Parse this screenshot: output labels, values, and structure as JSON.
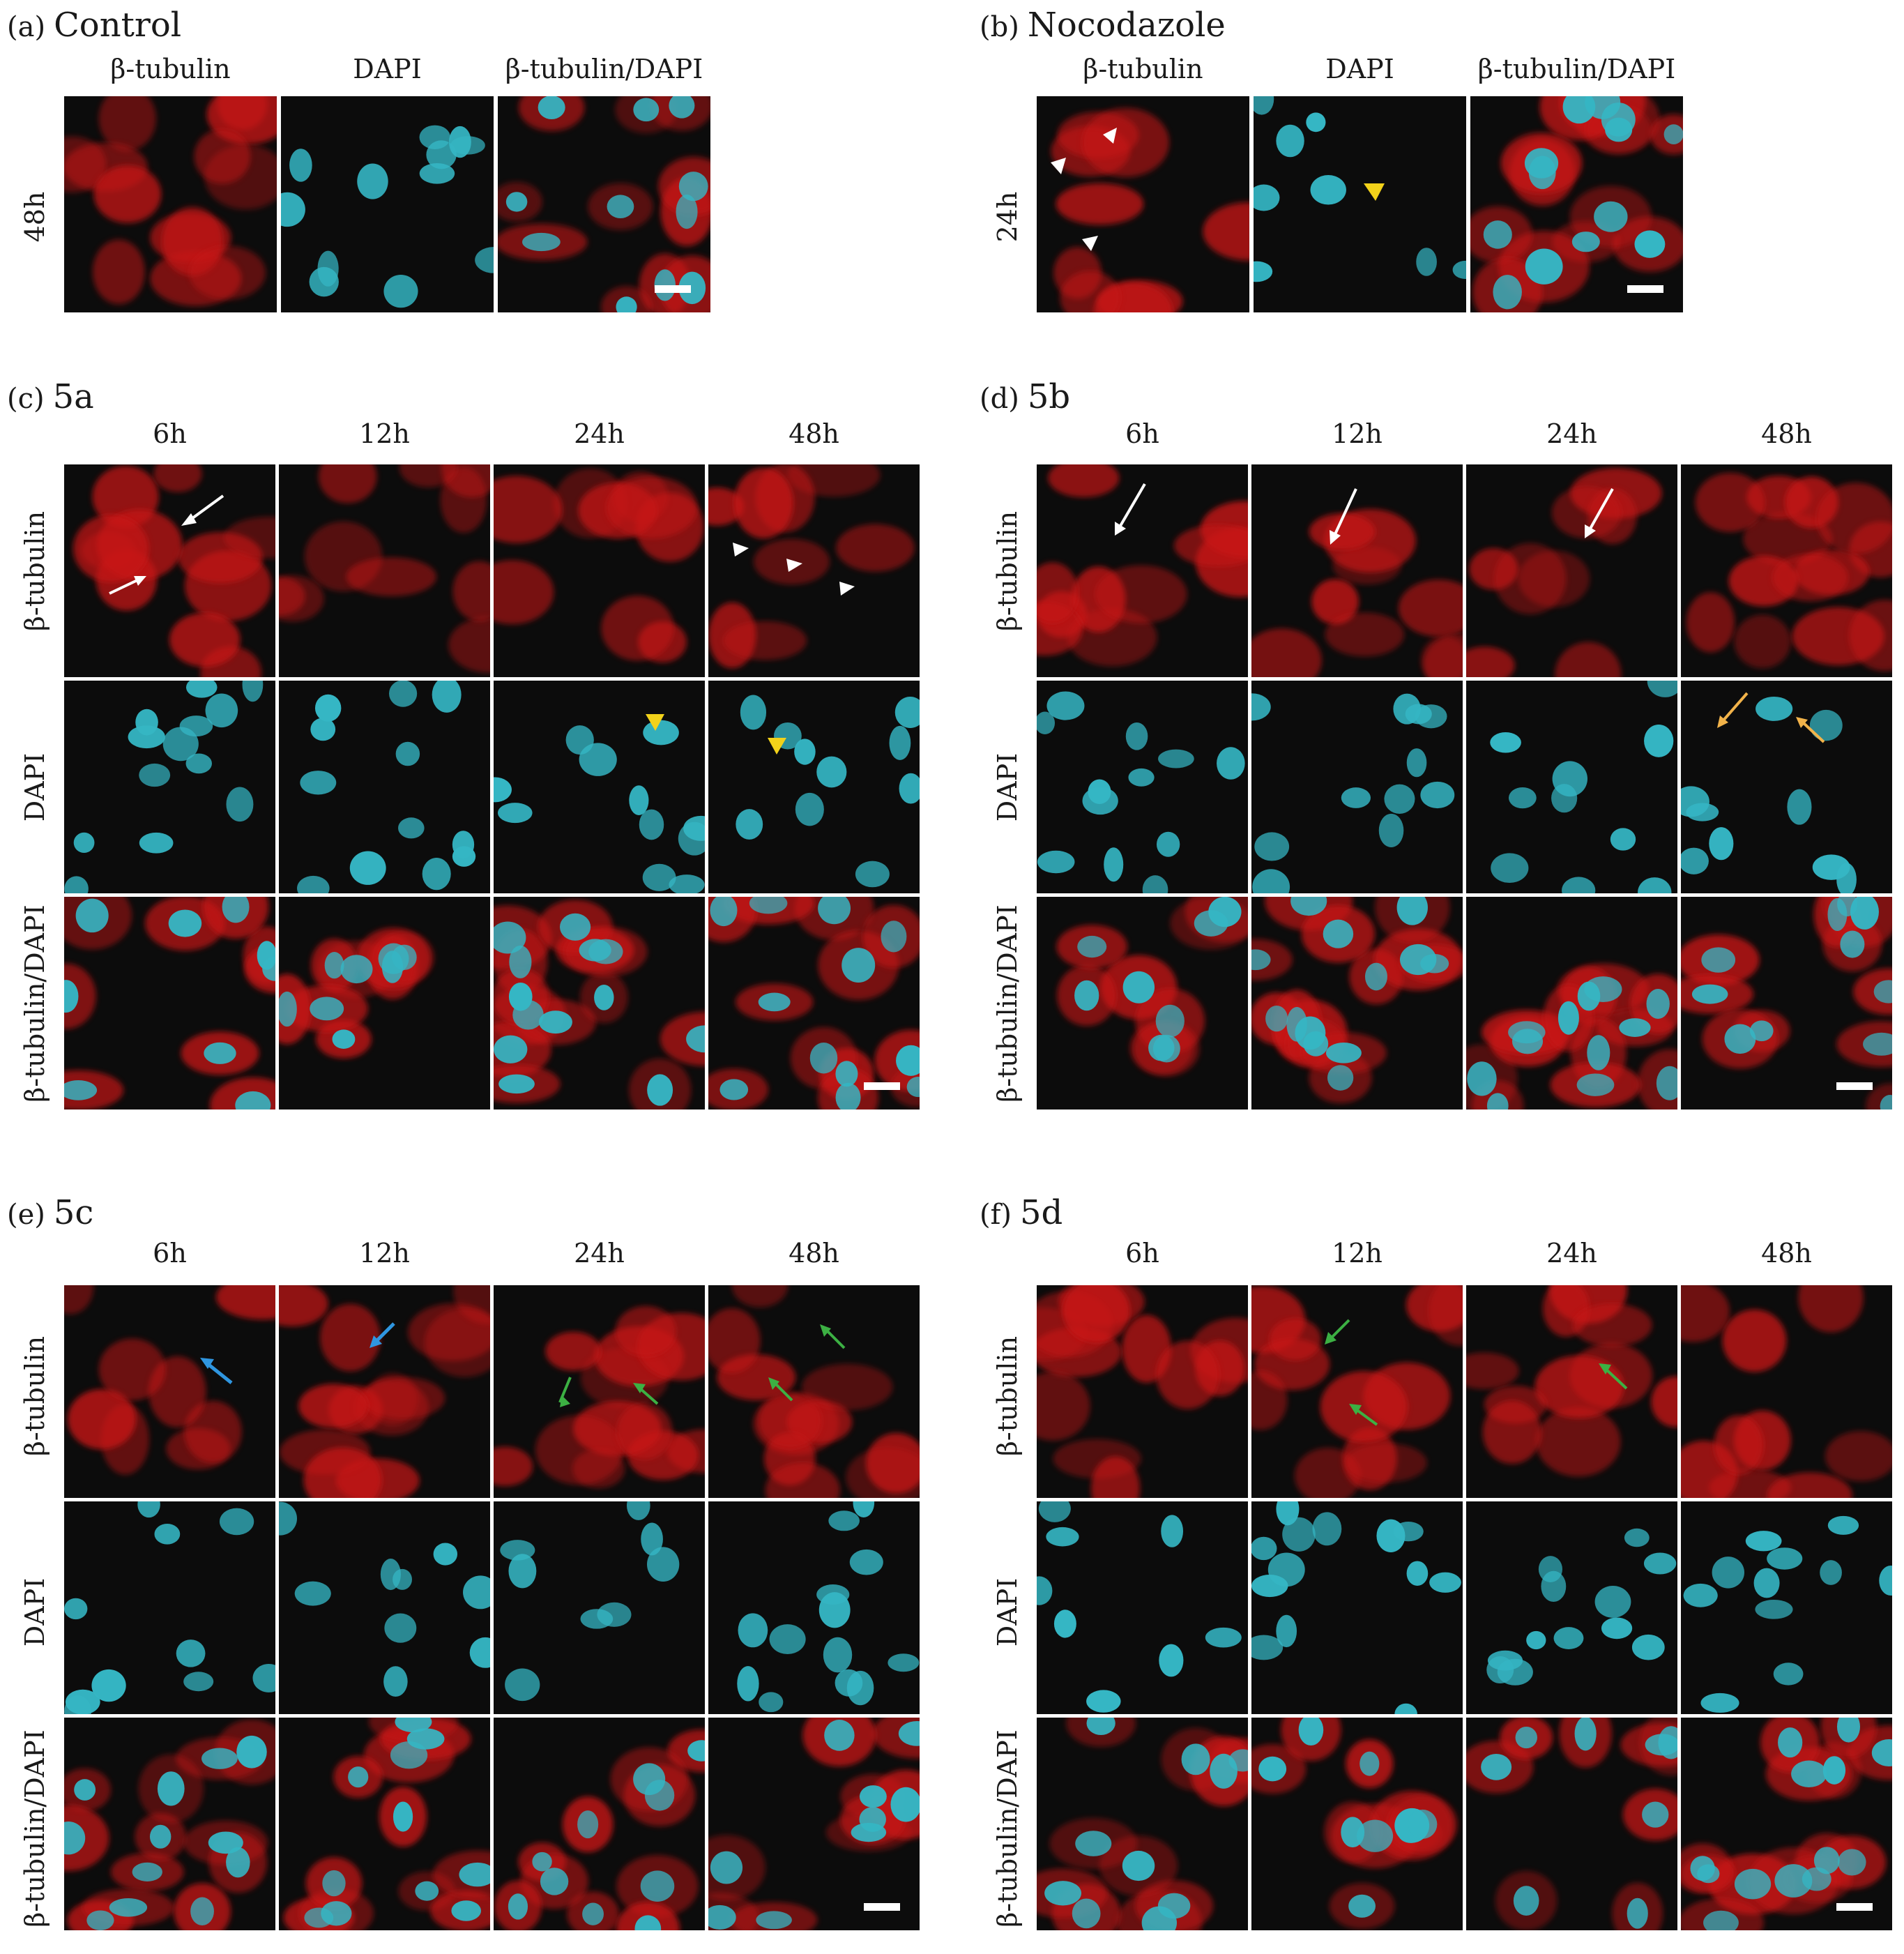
{
  "colors": {
    "tubulin": "#c81414",
    "dapi": "#35b6c4",
    "background": "#0c0c0c",
    "arrow_white": "#ffffff",
    "arrow_yellow": "#f2d21a",
    "arrow_green": "#3cb043",
    "arrow_blue": "#2f96e0",
    "arrow_orange": "#f2b34a"
  },
  "panels": {
    "a": {
      "letter": "(a)",
      "title": "Control",
      "columns": [
        "β-tubulin",
        "DAPI",
        "β-tubulin/DAPI"
      ],
      "row_label": "48h"
    },
    "b": {
      "letter": "(b)",
      "title": "Nocodazole",
      "columns": [
        "β-tubulin",
        "DAPI",
        "β-tubulin/DAPI"
      ],
      "row_label": "24h"
    },
    "c": {
      "letter": "(c)",
      "title": "5a",
      "columns": [
        "6h",
        "12h",
        "24h",
        "48h"
      ],
      "rows": [
        "β-tubulin",
        "DAPI",
        "β-tubulin/DAPI"
      ]
    },
    "d": {
      "letter": "(d)",
      "title": "5b",
      "columns": [
        "6h",
        "12h",
        "24h",
        "48h"
      ],
      "rows": [
        "β-tubulin",
        "DAPI",
        "β-tubulin/DAPI"
      ]
    },
    "e": {
      "letter": "(e)",
      "title": "5c",
      "columns": [
        "6h",
        "12h",
        "24h",
        "48h"
      ],
      "rows": [
        "β-tubulin",
        "DAPI",
        "β-tubulin/DAPI"
      ]
    },
    "f": {
      "letter": "(f)",
      "title": "5d",
      "columns": [
        "6h",
        "12h",
        "24h",
        "48h"
      ],
      "rows": [
        "β-tubulin",
        "DAPI",
        "β-tubulin/DAPI"
      ]
    }
  }
}
